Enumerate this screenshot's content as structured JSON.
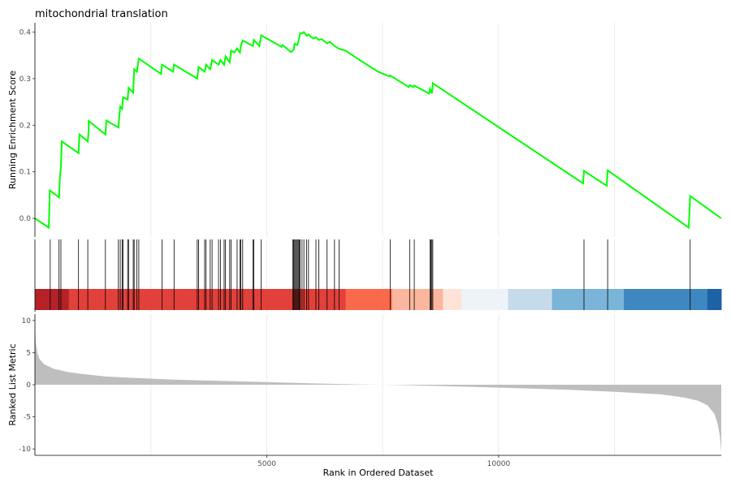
{
  "chart_data": {
    "type": "line",
    "title": "mitochondrial translation",
    "x_max": 14800,
    "es_panel": {
      "ylabel": "Running Enrichment Score",
      "ylim": [
        -0.04,
        0.42
      ],
      "yticks": [
        0.0,
        0.1,
        0.2,
        0.3,
        0.4
      ],
      "ytick_labels": [
        "0.0",
        "0.1",
        "0.2",
        "0.3",
        "0.4"
      ],
      "line_color": "#00ff00",
      "series": [
        {
          "values": [
            [
              0,
              0.0
            ],
            [
              300,
              -0.02
            ],
            [
              320,
              0.06
            ],
            [
              520,
              0.045
            ],
            [
              540,
              0.09
            ],
            [
              560,
              0.11
            ],
            [
              580,
              0.165
            ],
            [
              940,
              0.14
            ],
            [
              960,
              0.18
            ],
            [
              1140,
              0.165
            ],
            [
              1160,
              0.19
            ],
            [
              1160,
              0.209
            ],
            [
              1520,
              0.18
            ],
            [
              1540,
              0.21
            ],
            [
              1800,
              0.195
            ],
            [
              1820,
              0.22
            ],
            [
              1840,
              0.24
            ],
            [
              1880,
              0.235
            ],
            [
              1900,
              0.26
            ],
            [
              2000,
              0.255
            ],
            [
              2020,
              0.28
            ],
            [
              2120,
              0.27
            ],
            [
              2140,
              0.32
            ],
            [
              2200,
              0.315
            ],
            [
              2240,
              0.343
            ],
            [
              2720,
              0.31
            ],
            [
              2740,
              0.33
            ],
            [
              2980,
              0.315
            ],
            [
              3000,
              0.33
            ],
            [
              3500,
              0.3
            ],
            [
              3530,
              0.325
            ],
            [
              3660,
              0.315
            ],
            [
              3690,
              0.33
            ],
            [
              3780,
              0.32
            ],
            [
              3820,
              0.34
            ],
            [
              3960,
              0.33
            ],
            [
              4000,
              0.34
            ],
            [
              4080,
              0.33
            ],
            [
              4110,
              0.348
            ],
            [
              4200,
              0.335
            ],
            [
              4230,
              0.36
            ],
            [
              4300,
              0.356
            ],
            [
              4360,
              0.365
            ],
            [
              4420,
              0.356
            ],
            [
              4440,
              0.37
            ],
            [
              4480,
              0.382
            ],
            [
              4700,
              0.37
            ],
            [
              4720,
              0.383
            ],
            [
              4840,
              0.37
            ],
            [
              4880,
              0.393
            ],
            [
              5320,
              0.368
            ],
            [
              5340,
              0.372
            ],
            [
              5520,
              0.357
            ],
            [
              5580,
              0.362
            ],
            [
              5600,
              0.375
            ],
            [
              5660,
              0.372
            ],
            [
              5690,
              0.383
            ],
            [
              5720,
              0.398
            ],
            [
              5760,
              0.397
            ],
            [
              5800,
              0.4
            ],
            [
              5860,
              0.392
            ],
            [
              5900,
              0.395
            ],
            [
              5940,
              0.391
            ],
            [
              6000,
              0.386
            ],
            [
              6060,
              0.389
            ],
            [
              6120,
              0.383
            ],
            [
              6180,
              0.385
            ],
            [
              6300,
              0.376
            ],
            [
              6360,
              0.379
            ],
            [
              6460,
              0.37
            ],
            [
              6560,
              0.364
            ],
            [
              6700,
              0.36
            ],
            [
              7000,
              0.34
            ],
            [
              7400,
              0.315
            ],
            [
              7640,
              0.305
            ],
            [
              7660,
              0.307
            ],
            [
              8060,
              0.282
            ],
            [
              8080,
              0.286
            ],
            [
              8160,
              0.282
            ],
            [
              8180,
              0.285
            ],
            [
              8500,
              0.268
            ],
            [
              8520,
              0.278
            ],
            [
              8560,
              0.268
            ],
            [
              8580,
              0.29
            ],
            [
              11820,
              0.075
            ],
            [
              11840,
              0.102
            ],
            [
              12330,
              0.07
            ],
            [
              12350,
              0.103
            ],
            [
              14100,
              -0.02
            ],
            [
              14130,
              0.048
            ],
            [
              14800,
              0.0
            ]
          ]
        }
      ]
    },
    "hits_panel": {
      "hit_positions": [
        330,
        520,
        560,
        940,
        1140,
        1520,
        1800,
        1840,
        1880,
        1900,
        2000,
        2020,
        2120,
        2140,
        2200,
        2240,
        2740,
        3000,
        3500,
        3530,
        3660,
        3690,
        3780,
        3820,
        3960,
        4000,
        4080,
        4110,
        4200,
        4230,
        4360,
        4420,
        4440,
        4480,
        4700,
        4720,
        4880,
        5560,
        5580,
        5600,
        5620,
        5640,
        5660,
        5680,
        5700,
        5720,
        5760,
        5800,
        5860,
        5900,
        6060,
        6120,
        6300,
        6460,
        6560,
        7660,
        8080,
        8180,
        8520,
        8540,
        8560,
        8580,
        11840,
        12350,
        14130
      ],
      "hit_color": "#000000",
      "rank_bands": [
        {
          "end": 730,
          "color": "#b42228"
        },
        {
          "end": 6700,
          "color": "#e2403a"
        },
        {
          "end": 7700,
          "color": "#f9694c"
        },
        {
          "end": 8800,
          "color": "#fcb69d"
        },
        {
          "end": 9200,
          "color": "#fee4d8"
        },
        {
          "end": 10200,
          "color": "#eef3fa"
        },
        {
          "end": 11150,
          "color": "#c6dbea"
        },
        {
          "end": 12700,
          "color": "#7ab4d9"
        },
        {
          "end": 14500,
          "color": "#3f87c0"
        },
        {
          "end": 14800,
          "color": "#1e62a6"
        }
      ]
    },
    "rank_panel": {
      "ylabel": "Ranked List Metric",
      "xlabel": "Rank in Ordered Dataset",
      "ylim": [
        -11,
        11
      ],
      "yticks": [
        -10,
        -5,
        0,
        5,
        10
      ],
      "ytick_labels": [
        "-10",
        "-5",
        "0",
        "5",
        "10"
      ],
      "xticks": [
        5000,
        10000
      ],
      "xtick_labels": [
        "5000",
        "10000"
      ],
      "fill_color": "#bebebe",
      "values": [
        [
          0,
          9.5
        ],
        [
          20,
          6.5
        ],
        [
          50,
          5.0
        ],
        [
          100,
          4.0
        ],
        [
          200,
          3.2
        ],
        [
          400,
          2.5
        ],
        [
          700,
          2.0
        ],
        [
          1000,
          1.7
        ],
        [
          1500,
          1.3
        ],
        [
          2000,
          1.1
        ],
        [
          3000,
          0.8
        ],
        [
          4000,
          0.6
        ],
        [
          5000,
          0.4
        ],
        [
          6000,
          0.2
        ],
        [
          7000,
          0.05
        ],
        [
          7500,
          0.0
        ],
        [
          8500,
          -0.15
        ],
        [
          9500,
          -0.35
        ],
        [
          10500,
          -0.55
        ],
        [
          11500,
          -0.8
        ],
        [
          12500,
          -1.1
        ],
        [
          13500,
          -1.5
        ],
        [
          14000,
          -2.0
        ],
        [
          14300,
          -2.5
        ],
        [
          14500,
          -3.2
        ],
        [
          14650,
          -4.5
        ],
        [
          14720,
          -6.0
        ],
        [
          14770,
          -8.0
        ],
        [
          14800,
          -10.5
        ]
      ]
    }
  }
}
